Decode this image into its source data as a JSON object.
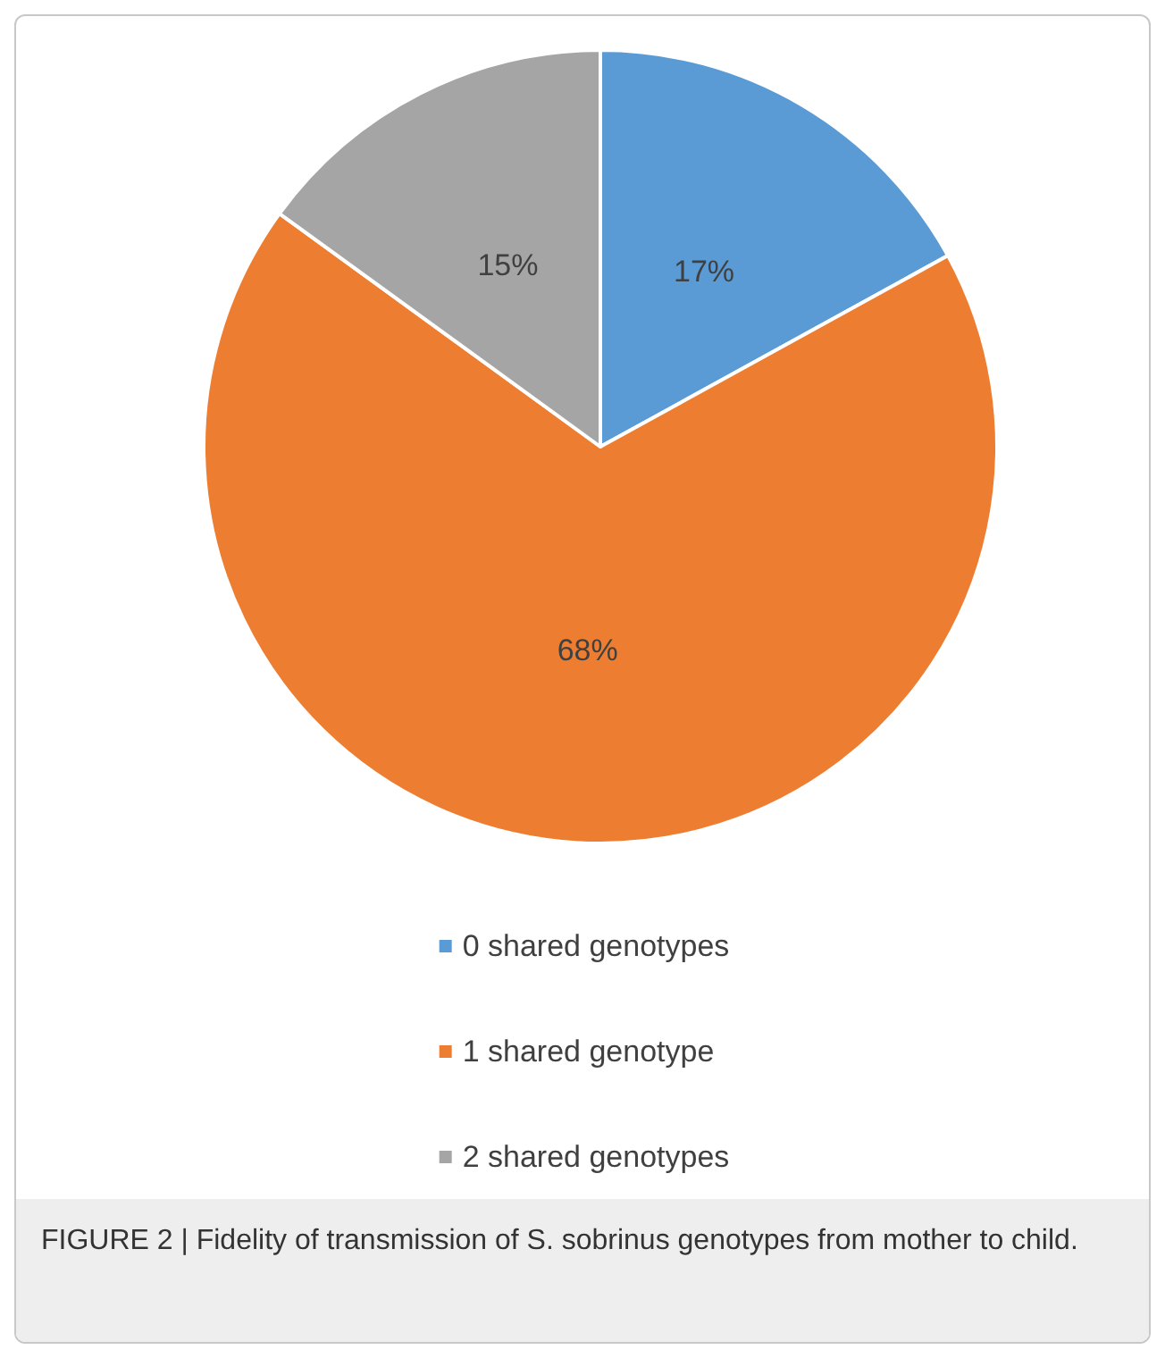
{
  "chart_data": {
    "type": "pie",
    "categories": [
      "0 shared genotypes",
      "1 shared genotype",
      "2 shared genotypes"
    ],
    "values": [
      17,
      68,
      15
    ],
    "colors": [
      "#5b9bd5",
      "#ed7d31",
      "#a5a5a5"
    ],
    "value_labels": [
      "17%",
      "68%",
      "15%"
    ],
    "legend": "bottom",
    "annotations": [
      "FIGURE 2 | Fidelity of transmission of S. sobrinus genotypes from mother to child."
    ]
  }
}
